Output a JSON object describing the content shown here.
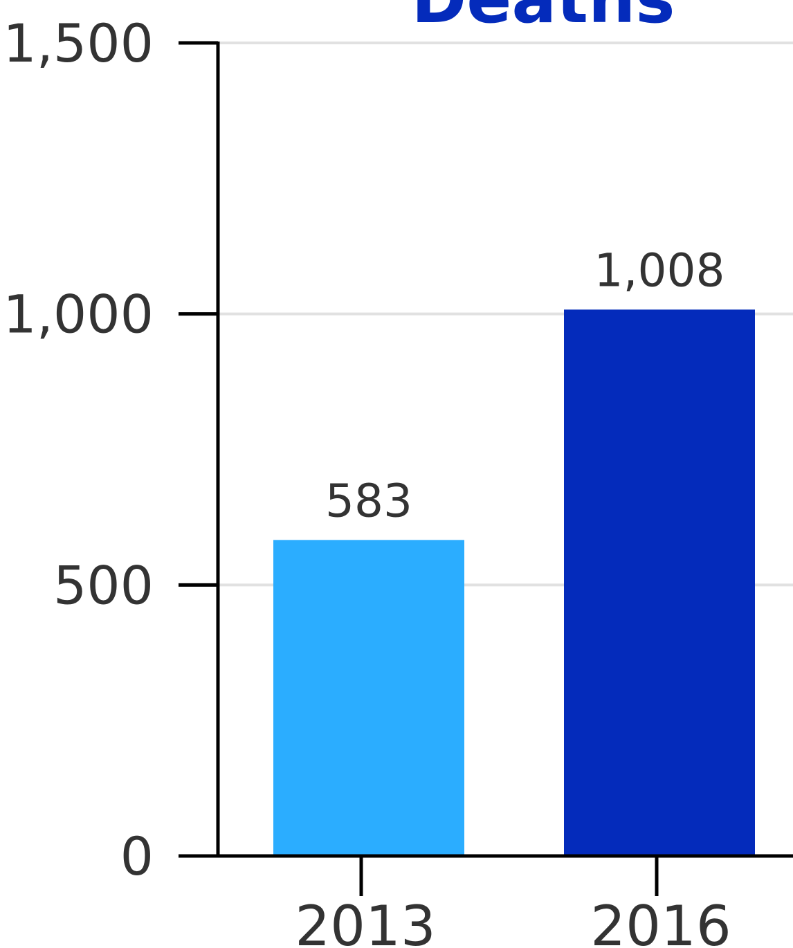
{
  "colors": {
    "title": "#042BBB",
    "axis": "#000000",
    "grid": "#E1E1E1",
    "text": "#333333",
    "bar_2013": "#2BADFF",
    "bar_2016": "#042BBB"
  },
  "chart_data": {
    "type": "bar",
    "title": "Deaths",
    "xlabel": "",
    "ylabel": "",
    "categories": [
      "2013",
      "2016"
    ],
    "values": [
      583,
      1008
    ],
    "data_labels": [
      "583",
      "1,008"
    ],
    "ylim": [
      0,
      1500
    ],
    "yticks": [
      0,
      500,
      1000,
      1500
    ],
    "ytick_labels": [
      "0",
      "500",
      "1,000",
      "1,500"
    ],
    "grid": true,
    "legend": "none"
  }
}
